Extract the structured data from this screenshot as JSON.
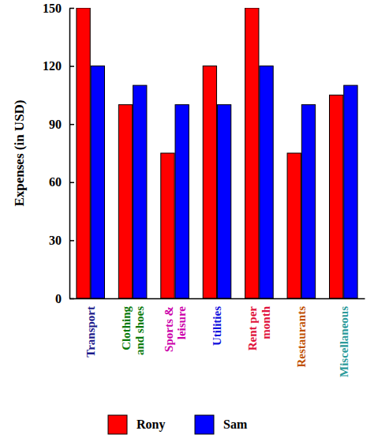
{
  "chart_data": {
    "type": "bar",
    "y_label": "Expenses (in USD)",
    "categories": [
      "Transport",
      "Clothing and shoes",
      "Sports & leisure",
      "Utilities",
      "Rent per month",
      "Restaurants",
      "Miscellaneous"
    ],
    "series": [
      {
        "name": "Rony",
        "color": "#ff0000",
        "values": [
          150,
          100,
          75,
          120,
          150,
          75,
          105
        ]
      },
      {
        "name": "Sam",
        "color": "#0000ff",
        "values": [
          120,
          110,
          100,
          100,
          120,
          100,
          110
        ]
      }
    ],
    "ylim": [
      0,
      150
    ],
    "yticks": [
      0,
      30,
      60,
      90,
      120,
      150
    ],
    "grid": false,
    "legend": "bottom"
  }
}
